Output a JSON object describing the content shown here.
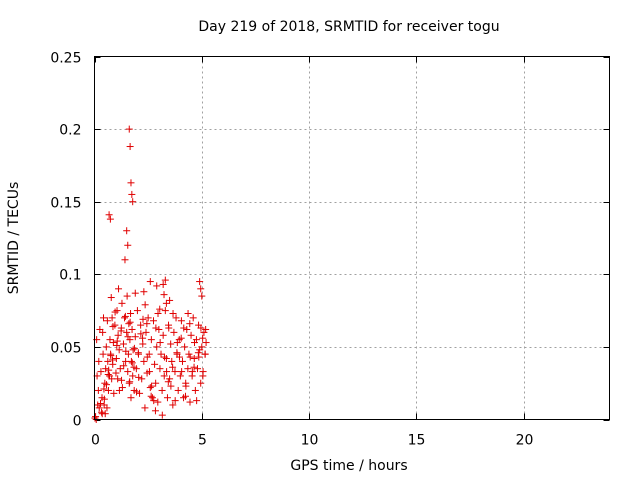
{
  "chart_data": {
    "type": "scatter",
    "title": "Day 219 of 2018, SRMTID for receiver togu",
    "xlabel": "GPS time / hours",
    "ylabel": "SRMTID / TECUs",
    "xlim": [
      0,
      24
    ],
    "ylim": [
      0,
      0.25
    ],
    "xticks": [
      0,
      5,
      10,
      15,
      20
    ],
    "yticks": [
      0,
      0.05,
      0.1,
      0.15,
      0.2,
      0.25
    ],
    "xtick_labels": [
      "0",
      "5",
      "10",
      "15",
      "20"
    ],
    "ytick_labels": [
      "0",
      "0.05",
      "0.1",
      "0.15",
      "0.2",
      "0.25"
    ],
    "grid": true,
    "marker": "plus",
    "marker_color": "#e00000",
    "series": [
      {
        "x": [
          0.02,
          0.05,
          0.08,
          0.1,
          0.12,
          0.15,
          0.18,
          0.2,
          0.25,
          0.3,
          0.33,
          0.35,
          0.38,
          0.4,
          0.42,
          0.45,
          0.48,
          0.5,
          0.52,
          0.55,
          0.58,
          0.6,
          0.62,
          0.65,
          0.7,
          0.72,
          0.75,
          0.78,
          0.8,
          0.82,
          0.85,
          0.88,
          0.9,
          0.95,
          1.0,
          1.02,
          1.05,
          1.08,
          1.1,
          1.12,
          1.15,
          1.2,
          1.25,
          1.28,
          1.3,
          1.35,
          1.4,
          1.42,
          1.45,
          1.5,
          1.52,
          1.55,
          1.58,
          1.6,
          1.62,
          1.65,
          1.68,
          1.7,
          1.72,
          1.75,
          1.78,
          1.8,
          1.85,
          1.9,
          1.95,
          2.0,
          2.05,
          2.1,
          2.15,
          2.2,
          2.25,
          2.3,
          2.35,
          2.4,
          2.45,
          2.5,
          2.55,
          2.6,
          2.65,
          2.7,
          2.75,
          2.8,
          2.85,
          2.9,
          2.95,
          3.0,
          3.05,
          3.1,
          3.15,
          3.2,
          3.25,
          3.3,
          3.35,
          3.4,
          3.45,
          3.5,
          3.55,
          3.6,
          3.65,
          3.7,
          3.75,
          3.8,
          3.85,
          3.9,
          3.95,
          4.0,
          4.05,
          4.1,
          4.15,
          4.2,
          4.25,
          4.3,
          4.35,
          4.4,
          4.45,
          4.5,
          4.55,
          4.6,
          4.65,
          4.7,
          4.75,
          4.8,
          4.85,
          4.9,
          4.95,
          5.0,
          5.05,
          5.1,
          5.15,
          5.2,
          0.22,
          0.36,
          0.46,
          0.56,
          0.66,
          0.76,
          0.86,
          0.96,
          1.06,
          1.16,
          1.26,
          1.36,
          1.46,
          1.56,
          1.66,
          1.76,
          1.86,
          1.96,
          2.06,
          2.16,
          2.26,
          2.36,
          2.46,
          2.56,
          2.66,
          2.76,
          2.86,
          2.96,
          3.06,
          3.16,
          3.26,
          3.36,
          3.46,
          3.56,
          3.66,
          3.76,
          3.86,
          3.96,
          4.06,
          4.16,
          4.26,
          4.36,
          4.46,
          4.56,
          4.66,
          4.76,
          4.86,
          4.96,
          5.06,
          5.16,
          0.28,
          0.44,
          0.64,
          0.84,
          1.04,
          1.24,
          1.44,
          1.64,
          1.84,
          2.04,
          2.24,
          2.44,
          2.64,
          2.84,
          3.04,
          3.24,
          3.44,
          3.64,
          3.84,
          4.04,
          4.24,
          4.44,
          4.64,
          4.84,
          5.04,
          5.18,
          0.68,
          0.74,
          1.62,
          1.66,
          1.7,
          1.74,
          1.78,
          1.5,
          1.55,
          2.6,
          2.9,
          3.3,
          4.9,
          5.0,
          4.95,
          2.3,
          1.9,
          3.5,
          3.2,
          3.35
        ],
        "y": [
          0.001,
          0.002,
          0.0,
          0.055,
          0.03,
          0.01,
          0.02,
          0.04,
          0.062,
          0.033,
          0.005,
          0.015,
          0.06,
          0.045,
          0.07,
          0.01,
          0.025,
          0.004,
          0.035,
          0.05,
          0.008,
          0.068,
          0.04,
          0.02,
          0.03,
          0.055,
          0.045,
          0.084,
          0.028,
          0.07,
          0.038,
          0.053,
          0.018,
          0.065,
          0.032,
          0.042,
          0.075,
          0.028,
          0.058,
          0.09,
          0.048,
          0.035,
          0.063,
          0.08,
          0.022,
          0.052,
          0.07,
          0.11,
          0.04,
          0.06,
          0.085,
          0.033,
          0.045,
          0.066,
          0.025,
          0.055,
          0.073,
          0.015,
          0.04,
          0.062,
          0.03,
          0.048,
          0.02,
          0.057,
          0.035,
          0.075,
          0.045,
          0.018,
          0.065,
          0.028,
          0.052,
          0.04,
          0.008,
          0.06,
          0.032,
          0.07,
          0.045,
          0.022,
          0.055,
          0.015,
          0.068,
          0.038,
          0.025,
          0.05,
          0.012,
          0.062,
          0.035,
          0.045,
          0.02,
          0.058,
          0.03,
          0.075,
          0.042,
          0.015,
          0.065,
          0.028,
          0.052,
          0.04,
          0.01,
          0.06,
          0.033,
          0.07,
          0.045,
          0.02,
          0.055,
          0.03,
          0.068,
          0.04,
          0.015,
          0.05,
          0.025,
          0.062,
          0.035,
          0.045,
          0.012,
          0.058,
          0.03,
          0.07,
          0.042,
          0.02,
          0.055,
          0.035,
          0.065,
          0.048,
          0.025,
          0.05,
          0.03,
          0.06,
          0.045,
          0.053,
          0.008,
          0.004,
          0.014,
          0.024,
          0.034,
          0.044,
          0.064,
          0.074,
          0.054,
          0.02,
          0.027,
          0.037,
          0.047,
          0.057,
          0.067,
          0.039,
          0.049,
          0.019,
          0.029,
          0.059,
          0.069,
          0.079,
          0.043,
          0.033,
          0.023,
          0.013,
          0.063,
          0.073,
          0.053,
          0.003,
          0.043,
          0.033,
          0.063,
          0.023,
          0.073,
          0.013,
          0.053,
          0.043,
          0.033,
          0.063,
          0.023,
          0.073,
          0.043,
          0.033,
          0.053,
          0.013,
          0.043,
          0.063,
          0.033,
          0.045,
          0.011,
          0.021,
          0.031,
          0.041,
          0.051,
          0.061,
          0.071,
          0.026,
          0.036,
          0.046,
          0.056,
          0.066,
          0.016,
          0.006,
          0.076,
          0.086,
          0.026,
          0.036,
          0.046,
          0.056,
          0.016,
          0.066,
          0.036,
          0.046,
          0.056,
          0.062,
          0.141,
          0.138,
          0.2,
          0.188,
          0.163,
          0.155,
          0.15,
          0.13,
          0.12,
          0.095,
          0.092,
          0.096,
          0.095,
          0.085,
          0.09,
          0.088,
          0.087,
          0.082,
          0.093,
          0.08
        ]
      }
    ]
  }
}
